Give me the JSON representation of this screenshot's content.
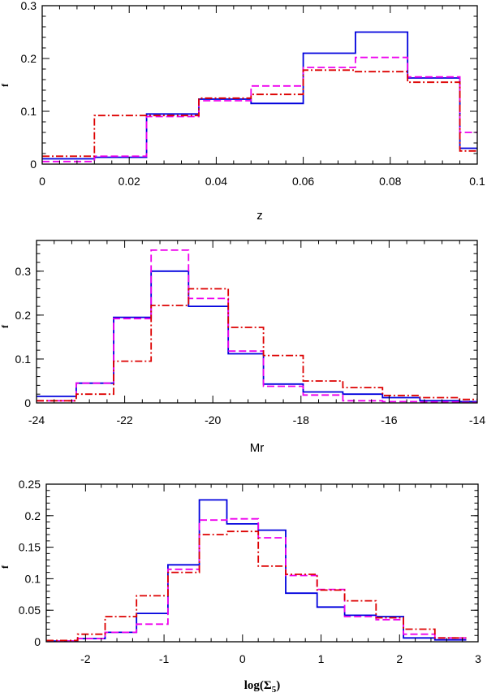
{
  "chart_data": [
    {
      "type": "histogram",
      "xlabel": "z",
      "ylabel": "f",
      "xlim": [
        0,
        0.1
      ],
      "ylim": [
        0,
        0.3
      ],
      "xticks": [
        0,
        0.02,
        0.04,
        0.06,
        0.08,
        0.1
      ],
      "xtick_labels": [
        "0",
        "0.02",
        "0.04",
        "0.06",
        "0.08",
        "0.1"
      ],
      "yticks": [
        0,
        0.1,
        0.2,
        0.3
      ],
      "ytick_labels": [
        "0",
        "0.1",
        "0.2",
        "0.3"
      ],
      "bin_edges": [
        0,
        0.012,
        0.024,
        0.036,
        0.048,
        0.06,
        0.072,
        0.084,
        0.096,
        0.1
      ],
      "series": [
        {
          "name": "blue-solid",
          "color": "#0000dd",
          "dash": "solid",
          "values": [
            0.01,
            0.013,
            0.095,
            0.123,
            0.115,
            0.21,
            0.25,
            0.163,
            0.03
          ]
        },
        {
          "name": "magenta-dashed",
          "color": "#ee00ee",
          "dash": "dashed",
          "values": [
            0.005,
            0.015,
            0.09,
            0.12,
            0.148,
            0.183,
            0.202,
            0.165,
            0.06
          ]
        },
        {
          "name": "red-dashdot",
          "color": "#dd0000",
          "dash": "dashdot",
          "values": [
            0.015,
            0.092,
            0.092,
            0.125,
            0.132,
            0.178,
            0.175,
            0.155,
            0.025
          ]
        }
      ]
    },
    {
      "type": "histogram",
      "xlabel": "Mr",
      "ylabel": "f",
      "xlim": [
        -24,
        -14
      ],
      "ylim": [
        0,
        0.37
      ],
      "xticks": [
        -24,
        -22,
        -20,
        -18,
        -16,
        -14
      ],
      "xtick_labels": [
        "-24",
        "-22",
        "-20",
        "-18",
        "-16",
        "-14"
      ],
      "yticks": [
        0,
        0.1,
        0.2,
        0.3
      ],
      "ytick_labels": [
        "0",
        "0.1",
        "0.2",
        "0.3"
      ],
      "bin_edges": [
        -24,
        -23.1,
        -22.25,
        -21.4,
        -20.55,
        -19.65,
        -18.85,
        -17.95,
        -17.05,
        -16.15,
        -15.3,
        -14.4,
        -14
      ],
      "series": [
        {
          "name": "blue-solid",
          "color": "#0000dd",
          "dash": "solid",
          "values": [
            0.015,
            0.045,
            0.195,
            0.3,
            0.22,
            0.112,
            0.043,
            0.025,
            0.02,
            0.012,
            0.005,
            0.003
          ]
        },
        {
          "name": "magenta-dashed",
          "color": "#ee00ee",
          "dash": "dashed",
          "values": [
            0.005,
            0.045,
            0.192,
            0.348,
            0.238,
            0.118,
            0.038,
            0.018,
            0.005,
            0.003,
            0.002,
            0.001
          ]
        },
        {
          "name": "red-dashdot",
          "color": "#dd0000",
          "dash": "dashdot",
          "values": [
            0.005,
            0.02,
            0.095,
            0.222,
            0.26,
            0.172,
            0.108,
            0.05,
            0.035,
            0.017,
            0.012,
            0.008
          ]
        }
      ]
    },
    {
      "type": "histogram",
      "xlabel": "log(Σ5)",
      "xlabel_main": "log(Σ",
      "xlabel_sub": "5",
      "xlabel_end": ")",
      "ylabel": "f",
      "xlim": [
        -2.5,
        3
      ],
      "ylim": [
        0,
        0.25
      ],
      "xticks": [
        -2,
        -1,
        0,
        1,
        2,
        3
      ],
      "xtick_labels": [
        "-2",
        "-1",
        "0",
        "1",
        "2",
        "3"
      ],
      "yticks": [
        0,
        0.05,
        0.1,
        0.15,
        0.2,
        0.25
      ],
      "ytick_labels": [
        "0",
        "0.05",
        "0.1",
        "0.15",
        "0.2",
        "0.25"
      ],
      "bin_edges": [
        -2.5,
        -2.1,
        -1.75,
        -1.35,
        -0.95,
        -0.55,
        -0.2,
        0.2,
        0.55,
        0.95,
        1.3,
        1.7,
        2.05,
        2.45,
        2.85
      ],
      "series": [
        {
          "name": "blue-solid",
          "color": "#0000dd",
          "dash": "solid",
          "values": [
            0.001,
            0.005,
            0.015,
            0.045,
            0.122,
            0.225,
            0.187,
            0.177,
            0.077,
            0.055,
            0.042,
            0.04,
            0.006,
            0.003
          ]
        },
        {
          "name": "magenta-dashed",
          "color": "#ee00ee",
          "dash": "dashed",
          "values": [
            0.001,
            0.005,
            0.015,
            0.028,
            0.115,
            0.193,
            0.195,
            0.165,
            0.105,
            0.083,
            0.04,
            0.035,
            0.012,
            0.006
          ]
        },
        {
          "name": "red-dashdot",
          "color": "#dd0000",
          "dash": "dashdot",
          "values": [
            0.002,
            0.012,
            0.04,
            0.073,
            0.11,
            0.17,
            0.175,
            0.12,
            0.107,
            0.082,
            0.065,
            0.038,
            0.02,
            0.006
          ]
        }
      ]
    }
  ]
}
